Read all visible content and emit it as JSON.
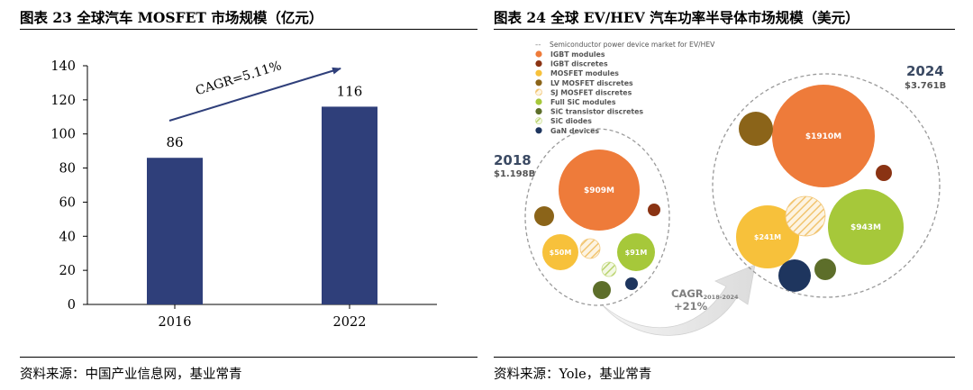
{
  "figures": [
    {
      "title": "图表 23 全球汽车 MOSFET 市场规模（亿元）",
      "source": "资料来源：中国产业信息网，基业常青"
    },
    {
      "title": "图表 24 全球 EV/HEV 汽车功率半导体市场规模（美元）",
      "source": "资料来源：Yole，基业常青"
    }
  ],
  "chart_data": [
    {
      "type": "bar",
      "title": "",
      "categories": [
        "2016",
        "2022"
      ],
      "values": [
        86,
        116
      ],
      "data_labels": [
        "86",
        "116"
      ],
      "ylim": [
        0,
        140
      ],
      "yticks": [
        0,
        20,
        40,
        60,
        80,
        100,
        120,
        140
      ],
      "xlabel": "",
      "ylabel": "",
      "grid": false,
      "bar_color": "#2f3f7a",
      "annotation": "CAGR=5.11%"
    },
    {
      "type": "bubble",
      "title": "",
      "legend_title": "Semiconductor power device market for EV/HEV",
      "legend": [
        {
          "name": "IGBT modules",
          "color": "#ee7b3a",
          "hatch": false
        },
        {
          "name": "IGBT discretes",
          "color": "#8a3313",
          "hatch": false
        },
        {
          "name": "MOSFET modules",
          "color": "#f7c13b",
          "hatch": false
        },
        {
          "name": "LV MOSFET discretes",
          "color": "#8b6419",
          "hatch": false
        },
        {
          "name": "SJ MOSFET discretes",
          "color": "#f3c87a",
          "hatch": true
        },
        {
          "name": "Full SiC modules",
          "color": "#a6c83a",
          "hatch": false
        },
        {
          "name": "SiC transistor discretes",
          "color": "#5d6e2a",
          "hatch": false
        },
        {
          "name": "SiC diodes",
          "color": "#c7dc86",
          "hatch": true
        },
        {
          "name": "GaN devices",
          "color": "#1e355e",
          "hatch": false
        }
      ],
      "series": [
        {
          "name": "2018",
          "total_label": "$1.198B",
          "bubbles": [
            {
              "category": "IGBT modules",
              "label": "$909M"
            },
            {
              "category": "MOSFET modules",
              "label": "$50M"
            },
            {
              "category": "Full SiC modules",
              "label": "$91M"
            },
            {
              "category": "LV MOSFET discretes",
              "label": ""
            },
            {
              "category": "IGBT discretes",
              "label": ""
            },
            {
              "category": "SJ MOSFET discretes",
              "label": ""
            },
            {
              "category": "SiC diodes",
              "label": ""
            },
            {
              "category": "SiC transistor discretes",
              "label": ""
            },
            {
              "category": "GaN devices",
              "label": ""
            }
          ]
        },
        {
          "name": "2024",
          "total_label": "$3.761B",
          "bubbles": [
            {
              "category": "IGBT modules",
              "label": "$1910M"
            },
            {
              "category": "Full SiC modules",
              "label": "$943M"
            },
            {
              "category": "MOSFET modules",
              "label": "$241M"
            },
            {
              "category": "LV MOSFET discretes",
              "label": ""
            },
            {
              "category": "SJ MOSFET discretes",
              "label": ""
            },
            {
              "category": "IGBT discretes",
              "label": ""
            },
            {
              "category": "GaN devices",
              "label": ""
            },
            {
              "category": "SiC transistor discretes",
              "label": ""
            }
          ]
        }
      ],
      "cagr_label": "CAGR",
      "cagr_period": "2018-2024",
      "cagr_value": "+21%"
    }
  ]
}
